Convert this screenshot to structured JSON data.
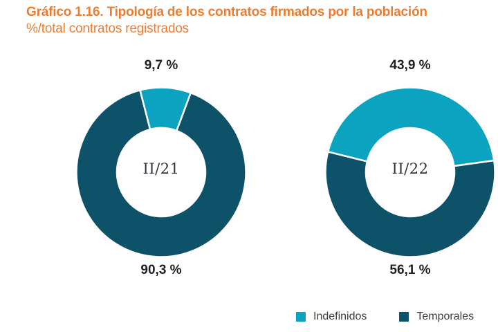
{
  "header": {
    "title": "Gráfico 1.16. Tipología de los contratos firmados por la población",
    "subtitle": "%/total contratos registrados"
  },
  "colors": {
    "title_orange": "#ED7C2E",
    "indefinidos_teal": "#0BA3C0",
    "temporales_dark_teal": "#0E5269",
    "percent_label_dark": "#1E1E24",
    "legend_text": "#3C3C3B"
  },
  "legend": {
    "items": [
      {
        "label": "Indefinidos"
      },
      {
        "label": "Temporales"
      }
    ]
  },
  "chart_data": {
    "type": "pie",
    "subtype": "double-donut",
    "title": "Gráfico 1.16. Tipología de los contratos firmados por la población",
    "subtitle": "%/total contratos registrados",
    "unit": "% of total registered contracts",
    "legend_position": "bottom-right",
    "series_labels": [
      "Indefinidos",
      "Temporales"
    ],
    "colors": [
      "#0BA3C0",
      "#0E5269"
    ],
    "start_offset_deg": 3,
    "donut_outer_radius_px": 122.5,
    "donut_inner_radius_px": 64,
    "donuts": [
      {
        "center_label": "II/21",
        "segments": [
          {
            "name": "Indefinidos",
            "value": 9.7,
            "display": "9,7 %"
          },
          {
            "name": "Temporales",
            "value": 90.3,
            "display": "90,3 %"
          }
        ]
      },
      {
        "center_label": "II/22",
        "segments": [
          {
            "name": "Indefinidos",
            "value": 43.9,
            "display": "43,9 %"
          },
          {
            "name": "Temporales",
            "value": 56.1,
            "display": "56,1 %"
          }
        ]
      }
    ]
  }
}
